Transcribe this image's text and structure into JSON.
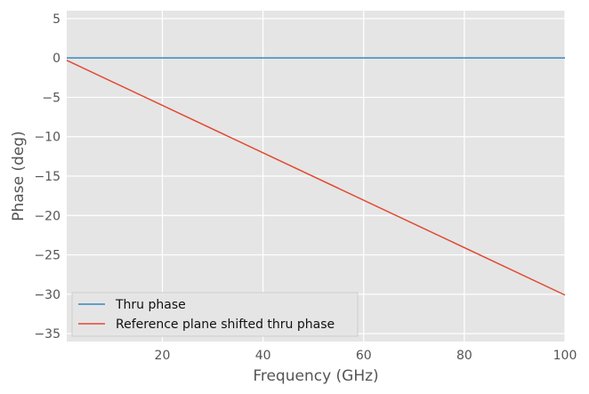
{
  "chart_data": {
    "type": "line",
    "xlabel": "Frequency (GHz)",
    "ylabel": "Phase (deg)",
    "xlim": [
      1,
      100
    ],
    "ylim": [
      -36,
      6
    ],
    "xticks": [
      20,
      40,
      60,
      80,
      100
    ],
    "yticks": [
      5,
      0,
      -5,
      -10,
      -15,
      -20,
      -25,
      -30,
      -35
    ],
    "grid": true,
    "background": "#e5e5e5",
    "legend_position": "lower-left",
    "series": [
      {
        "name": "Thru phase",
        "color": "#348abd",
        "x": [
          1,
          100
        ],
        "y": [
          0,
          0
        ]
      },
      {
        "name": "Reference plane shifted thru phase",
        "color": "#e24a33",
        "x": [
          1,
          100
        ],
        "y": [
          -0.3,
          -30.1
        ]
      }
    ]
  }
}
